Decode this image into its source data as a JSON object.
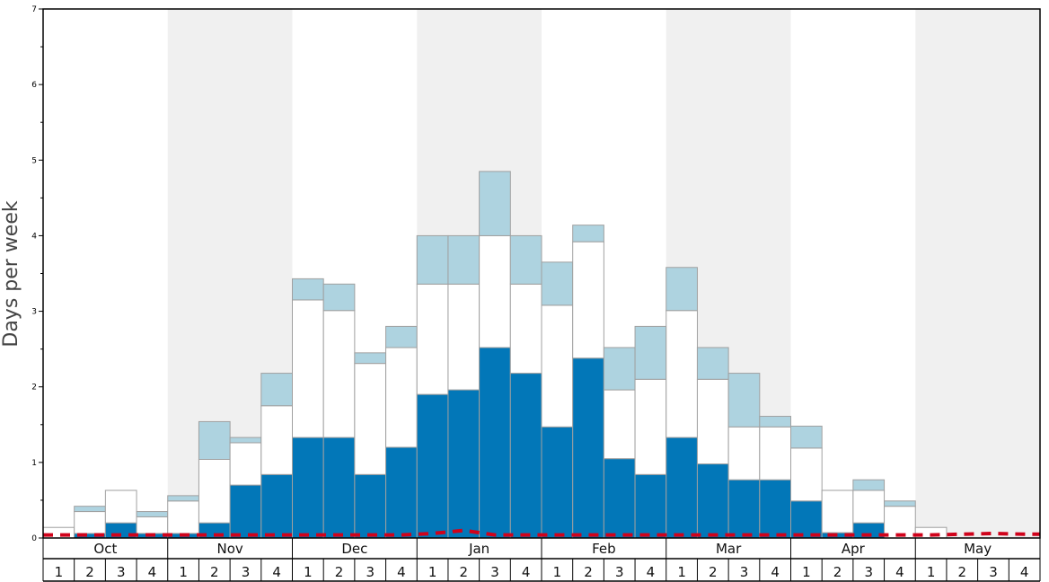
{
  "chart_data": {
    "type": "bar",
    "title": "",
    "xlabel": "",
    "ylabel": "Days per week",
    "ylim": [
      0,
      7
    ],
    "y_major_ticks": [
      "0",
      "1",
      "2",
      "3",
      "4",
      "5",
      "6",
      "7"
    ],
    "months": [
      "Oct",
      "Nov",
      "Dec",
      "Jan",
      "Feb",
      "Mar",
      "Apr",
      "May"
    ],
    "week_labels": [
      "1",
      "2",
      "3",
      "4"
    ],
    "stacked": true,
    "colors": {
      "dark": "#0277b8",
      "white": "#ffffff",
      "light": "#aed3e0",
      "shade": "#f0f0f0",
      "line": "#d0021b",
      "bar_border": "#a0a0a0"
    },
    "series": [
      {
        "values": [
          0.0,
          0.06,
          0.2,
          0.06,
          0.06,
          0.2,
          0.7,
          0.84,
          1.33,
          1.33,
          0.84,
          1.2,
          1.9,
          1.96,
          2.52,
          2.18,
          1.47,
          2.38,
          1.05,
          0.84,
          1.33,
          0.98,
          0.77,
          0.77,
          0.49,
          0.07,
          0.2,
          0.0,
          0.0,
          0.0,
          0.0,
          0.0
        ]
      },
      {
        "values": [
          0.14,
          0.29,
          0.43,
          0.22,
          0.43,
          0.84,
          0.56,
          0.91,
          1.82,
          1.68,
          1.47,
          1.32,
          1.46,
          1.4,
          1.48,
          1.18,
          1.61,
          1.54,
          0.91,
          1.26,
          1.68,
          1.12,
          0.7,
          0.7,
          0.7,
          0.56,
          0.43,
          0.42,
          0.14,
          0.0,
          0.0,
          0.0
        ]
      },
      {
        "values": [
          0.0,
          0.07,
          0.0,
          0.07,
          0.07,
          0.5,
          0.07,
          0.43,
          0.28,
          0.35,
          0.14,
          0.28,
          0.64,
          0.64,
          0.85,
          0.64,
          0.57,
          0.22,
          0.56,
          0.7,
          0.57,
          0.42,
          0.71,
          0.14,
          0.29,
          0.0,
          0.14,
          0.07,
          0.0,
          0.0,
          0.0,
          0.0
        ]
      },
      {
        "type": "line",
        "style": "dashed",
        "values": [
          0.04,
          0.04,
          0.04,
          0.04,
          0.04,
          0.04,
          0.04,
          0.04,
          0.04,
          0.04,
          0.04,
          0.04,
          0.06,
          0.1,
          0.04,
          0.04,
          0.04,
          0.04,
          0.04,
          0.04,
          0.04,
          0.04,
          0.04,
          0.04,
          0.04,
          0.04,
          0.04,
          0.04,
          0.04,
          0.05,
          0.06,
          0.05
        ]
      }
    ]
  }
}
